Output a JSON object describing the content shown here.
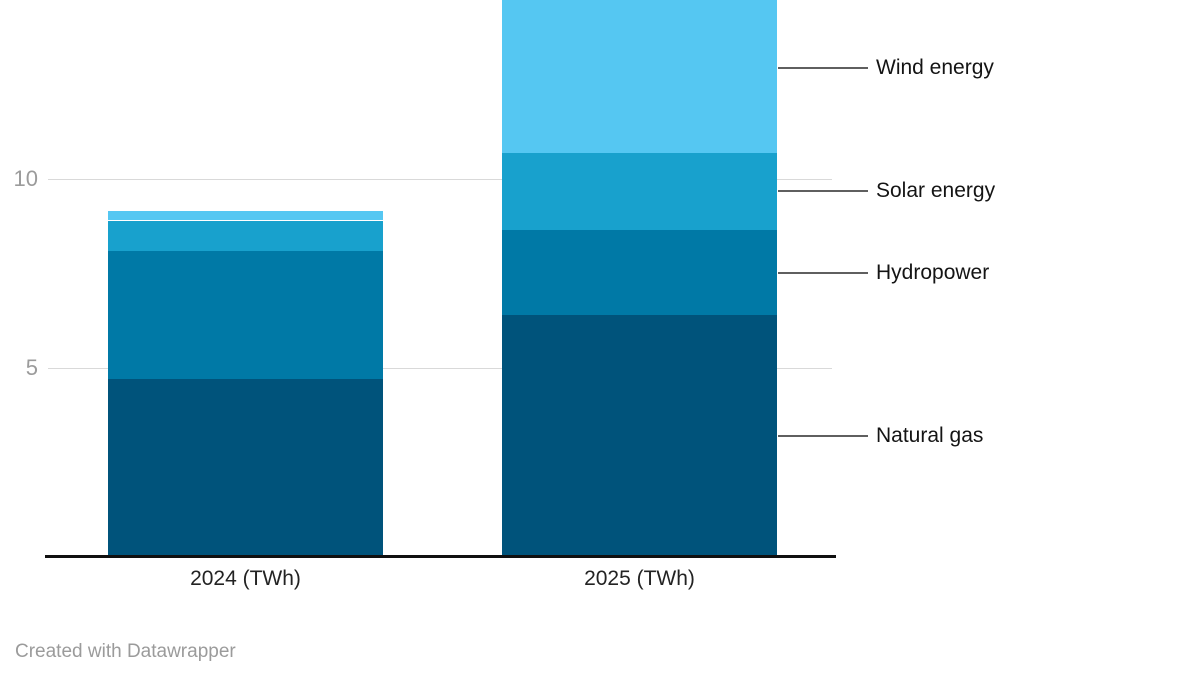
{
  "chart_data": {
    "type": "bar",
    "stacked": true,
    "categories": [
      "2024 (TWh)",
      "2025 (TWh)"
    ],
    "series": [
      {
        "name": "Natural gas",
        "color": "#00537b",
        "values": [
          4.7,
          6.4
        ]
      },
      {
        "name": "Hydropower",
        "color": "#0079a6",
        "values": [
          3.4,
          2.25
        ]
      },
      {
        "name": "Solar energy",
        "color": "#18a1cd",
        "values": [
          0.8,
          2.05
        ]
      },
      {
        "name": "Wind energy",
        "color": "#55c7f2",
        "values": [
          0.25,
          4.45
        ]
      }
    ],
    "yticks": [
      5,
      10
    ],
    "ylim": [
      0,
      14.7
    ],
    "grid": "horizontal",
    "legend_position": "right-connectors",
    "note": "Top of 2025 Wind energy segment is clipped at the upper edge of the image"
  },
  "footer": {
    "credit": "Created with Datawrapper"
  }
}
